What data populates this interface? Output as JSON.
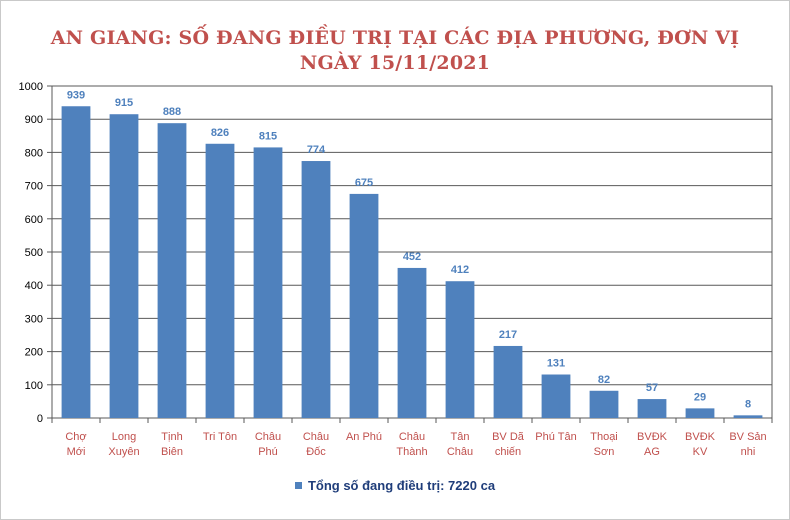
{
  "chart_data": {
    "type": "bar",
    "title_line1": "AN GIANG: SỐ ĐANG ĐIỀU  TRỊ TẠI CÁC ĐỊA PHƯƠNG, ĐƠN VỊ",
    "title_line2": "NGÀY 15/11/2021",
    "categories": [
      [
        "Chợ",
        "Mới"
      ],
      [
        "Long",
        "Xuyên"
      ],
      [
        "Tịnh",
        "Biên"
      ],
      [
        "Tri Tôn"
      ],
      [
        "Châu",
        "Phú"
      ],
      [
        "Châu",
        "Đốc"
      ],
      [
        "An Phú"
      ],
      [
        "Châu",
        "Thành"
      ],
      [
        "Tân",
        "Châu"
      ],
      [
        "BV Dã",
        "chiến"
      ],
      [
        "Phú Tân"
      ],
      [
        "Thoại",
        "Sơn"
      ],
      [
        "BVĐK",
        "AG"
      ],
      [
        "BVĐK",
        "KV"
      ],
      [
        "BV Sản",
        "nhi"
      ]
    ],
    "series": [
      {
        "name": "Tổng số  đang điều trị: 7220 ca",
        "values": [
          939,
          915,
          888,
          826,
          815,
          774,
          675,
          452,
          412,
          217,
          131,
          82,
          57,
          29,
          8
        ]
      }
    ],
    "ylim": [
      0,
      1000
    ],
    "yticks": [
      0,
      100,
      200,
      300,
      400,
      500,
      600,
      700,
      800,
      900,
      1000
    ],
    "grid": true,
    "legend_position": "bottom",
    "colors": {
      "bar": "#4f81bd",
      "data_label": "#4f81bd",
      "category_label": "#c0504d",
      "title": "#c0504d",
      "legend_text": "#1f3d7a",
      "grid": "#595959"
    }
  }
}
